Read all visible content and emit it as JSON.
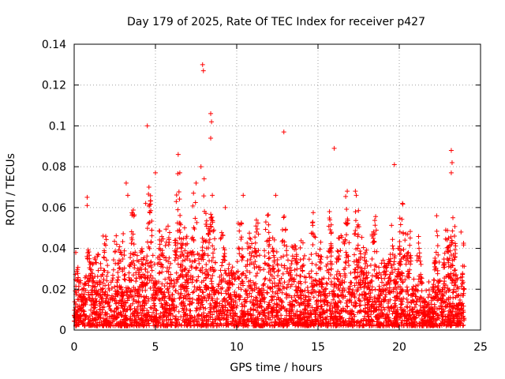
{
  "chart_data": {
    "type": "scatter",
    "title": "Day 179 of 2025, Rate Of TEC Index for receiver p427",
    "xlabel": "GPS time / hours",
    "ylabel": "ROTI / TECUs",
    "xlim": [
      0,
      25
    ],
    "ylim": [
      0,
      0.14
    ],
    "xticks": [
      0,
      5,
      10,
      15,
      20,
      25
    ],
    "xtick_labels": [
      "0",
      "5",
      "10",
      "15",
      "20",
      "25"
    ],
    "yticks": [
      0,
      0.02,
      0.04,
      0.06,
      0.08,
      0.1,
      0.12,
      0.14
    ],
    "ytick_labels": [
      "0",
      "0.02",
      "0.04",
      "0.06",
      "0.08",
      "0.1",
      "0.12",
      "0.14"
    ],
    "grid": true,
    "marker": "+",
    "color": "#ff0000",
    "series": [
      {
        "name": "ROTI",
        "outliers": [
          [
            0.1,
            0.038
          ],
          [
            0.8,
            0.065
          ],
          [
            0.8,
            0.061
          ],
          [
            3.2,
            0.072
          ],
          [
            3.3,
            0.066
          ],
          [
            4.4,
            0.062
          ],
          [
            4.5,
            0.1
          ],
          [
            4.6,
            0.07
          ],
          [
            5.0,
            0.077
          ],
          [
            6.4,
            0.086
          ],
          [
            6.5,
            0.077
          ],
          [
            7.5,
            0.072
          ],
          [
            7.8,
            0.08
          ],
          [
            7.9,
            0.13
          ],
          [
            7.95,
            0.127
          ],
          [
            8.4,
            0.106
          ],
          [
            8.45,
            0.102
          ],
          [
            8.4,
            0.094
          ],
          [
            8.5,
            0.066
          ],
          [
            9.3,
            0.06
          ],
          [
            10.4,
            0.066
          ],
          [
            10.3,
            0.052
          ],
          [
            12.4,
            0.066
          ],
          [
            12.9,
            0.097
          ],
          [
            16.0,
            0.089
          ],
          [
            16.8,
            0.068
          ],
          [
            17.3,
            0.068
          ],
          [
            19.7,
            0.081
          ],
          [
            20.2,
            0.062
          ],
          [
            22.3,
            0.056
          ],
          [
            23.2,
            0.088
          ],
          [
            23.25,
            0.082
          ],
          [
            23.2,
            0.077
          ],
          [
            23.3,
            0.055
          ],
          [
            23.4,
            0.046
          ],
          [
            23.8,
            0.048
          ]
        ],
        "density_envelope": [
          [
            0.0,
            0.025
          ],
          [
            0.5,
            0.032
          ],
          [
            1.0,
            0.038
          ],
          [
            1.5,
            0.043
          ],
          [
            2.0,
            0.035
          ],
          [
            2.5,
            0.04
          ],
          [
            3.0,
            0.045
          ],
          [
            3.5,
            0.047
          ],
          [
            4.0,
            0.043
          ],
          [
            4.5,
            0.058
          ],
          [
            5.0,
            0.05
          ],
          [
            5.5,
            0.047
          ],
          [
            6.0,
            0.05
          ],
          [
            6.5,
            0.06
          ],
          [
            7.0,
            0.052
          ],
          [
            7.5,
            0.062
          ],
          [
            8.0,
            0.07
          ],
          [
            8.5,
            0.05
          ],
          [
            9.0,
            0.045
          ],
          [
            9.5,
            0.04
          ],
          [
            10.0,
            0.045
          ],
          [
            10.5,
            0.05
          ],
          [
            11.0,
            0.045
          ],
          [
            11.5,
            0.048
          ],
          [
            12.0,
            0.05
          ],
          [
            12.5,
            0.052
          ],
          [
            13.0,
            0.045
          ],
          [
            13.5,
            0.05
          ],
          [
            14.0,
            0.04
          ],
          [
            14.5,
            0.045
          ],
          [
            15.0,
            0.045
          ],
          [
            15.5,
            0.04
          ],
          [
            16.0,
            0.043
          ],
          [
            16.5,
            0.05
          ],
          [
            17.0,
            0.058
          ],
          [
            17.5,
            0.05
          ],
          [
            18.0,
            0.045
          ],
          [
            18.5,
            0.045
          ],
          [
            19.0,
            0.04
          ],
          [
            19.5,
            0.045
          ],
          [
            20.0,
            0.058
          ],
          [
            20.5,
            0.05
          ],
          [
            21.0,
            0.04
          ],
          [
            21.5,
            0.025
          ],
          [
            22.0,
            0.02
          ],
          [
            22.5,
            0.045
          ],
          [
            23.0,
            0.05
          ],
          [
            23.5,
            0.045
          ],
          [
            24.0,
            0.03
          ]
        ],
        "baseline_floor": 0.002,
        "time_span_hours": [
          0,
          24
        ]
      }
    ]
  }
}
